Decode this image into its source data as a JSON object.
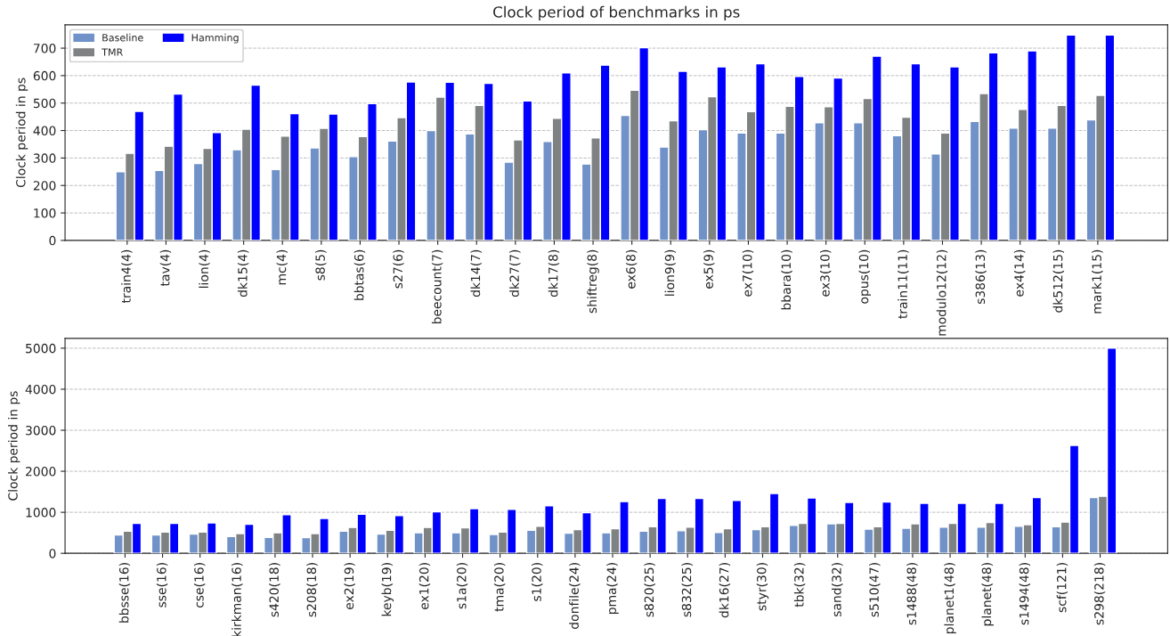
{
  "chart_data": [
    {
      "type": "bar",
      "title": "Clock period of benchmarks in ps",
      "ylabel": "Clock period in ps",
      "categories": [
        "train4(4)",
        "tav(4)",
        "lion(4)",
        "dk15(4)",
        "mc(4)",
        "s8(5)",
        "bbtas(6)",
        "s27(6)",
        "beecount(7)",
        "dk14(7)",
        "dk27(7)",
        "dk17(8)",
        "shiftreg(8)",
        "ex6(8)",
        "lion9(9)",
        "ex5(9)",
        "ex7(10)",
        "bbara(10)",
        "ex3(10)",
        "opus(10)",
        "train11(11)",
        "modulo12(12)",
        "s386(13)",
        "ex4(14)",
        "dk512(15)",
        "mark1(15)"
      ],
      "series": [
        {
          "name": "Baseline",
          "color": "#7092c8",
          "values": [
            250,
            255,
            280,
            330,
            258,
            337,
            305,
            362,
            400,
            388,
            285,
            360,
            278,
            455,
            340,
            403,
            391,
            391,
            428,
            428,
            381,
            315,
            433,
            409,
            409,
            439
          ]
        },
        {
          "name": "TMR",
          "color": "#7f8282",
          "values": [
            317,
            343,
            335,
            405,
            380,
            408,
            378,
            447,
            522,
            492,
            366,
            445,
            373,
            547,
            436,
            523,
            469,
            488,
            487,
            517,
            449,
            391,
            535,
            477,
            492,
            528
          ]
        },
        {
          "name": "Hamming",
          "color": "#0000ff",
          "values": [
            470,
            533,
            393,
            565,
            462,
            460,
            498,
            577,
            576,
            572,
            508,
            610,
            638,
            702,
            616,
            632,
            643,
            597,
            591,
            671,
            643,
            632,
            683,
            690,
            748,
            748
          ]
        }
      ],
      "ylim": [
        0,
        785
      ],
      "yticks": [
        0,
        100,
        200,
        300,
        400,
        500,
        600,
        700
      ],
      "grid": "y",
      "legend": "top left"
    },
    {
      "type": "bar",
      "ylabel": "Clock period in ps",
      "categories": [
        "bbsse(16)",
        "sse(16)",
        "cse(16)",
        "kirkman(16)",
        "s420(18)",
        "s208(18)",
        "ex2(19)",
        "keyb(19)",
        "ex1(20)",
        "s1a(20)",
        "tma(20)",
        "s1(20)",
        "donfile(24)",
        "pma(24)",
        "s820(25)",
        "s832(25)",
        "dk16(27)",
        "styr(30)",
        "tbk(32)",
        "sand(32)",
        "s510(47)",
        "s1488(48)",
        "planet1(48)",
        "planet(48)",
        "s1494(48)",
        "scf(121)",
        "s298(218)"
      ],
      "series": [
        {
          "color": "#7092c8",
          "values": [
            450,
            450,
            470,
            410,
            390,
            380,
            540,
            470,
            500,
            500,
            460,
            560,
            490,
            500,
            540,
            550,
            510,
            580,
            680,
            720,
            590,
            610,
            640,
            640,
            660,
            650,
            1360
          ]
        },
        {
          "color": "#7f8282",
          "values": [
            540,
            520,
            520,
            480,
            500,
            480,
            630,
            560,
            630,
            620,
            520,
            660,
            580,
            600,
            650,
            640,
            600,
            650,
            730,
            730,
            650,
            720,
            730,
            750,
            700,
            760,
            1390
          ]
        },
        {
          "color": "#0000ff",
          "values": [
            730,
            730,
            740,
            710,
            940,
            850,
            950,
            920,
            1010,
            1090,
            1070,
            1160,
            990,
            1260,
            1340,
            1340,
            1290,
            1460,
            1350,
            1240,
            1250,
            1220,
            1220,
            1220,
            1360,
            2630,
            5000
          ]
        }
      ],
      "ylim": [
        0,
        5240
      ],
      "yticks": [
        0,
        1000,
        2000,
        3000,
        4000,
        5000
      ],
      "grid": "y",
      "legend": false
    }
  ]
}
